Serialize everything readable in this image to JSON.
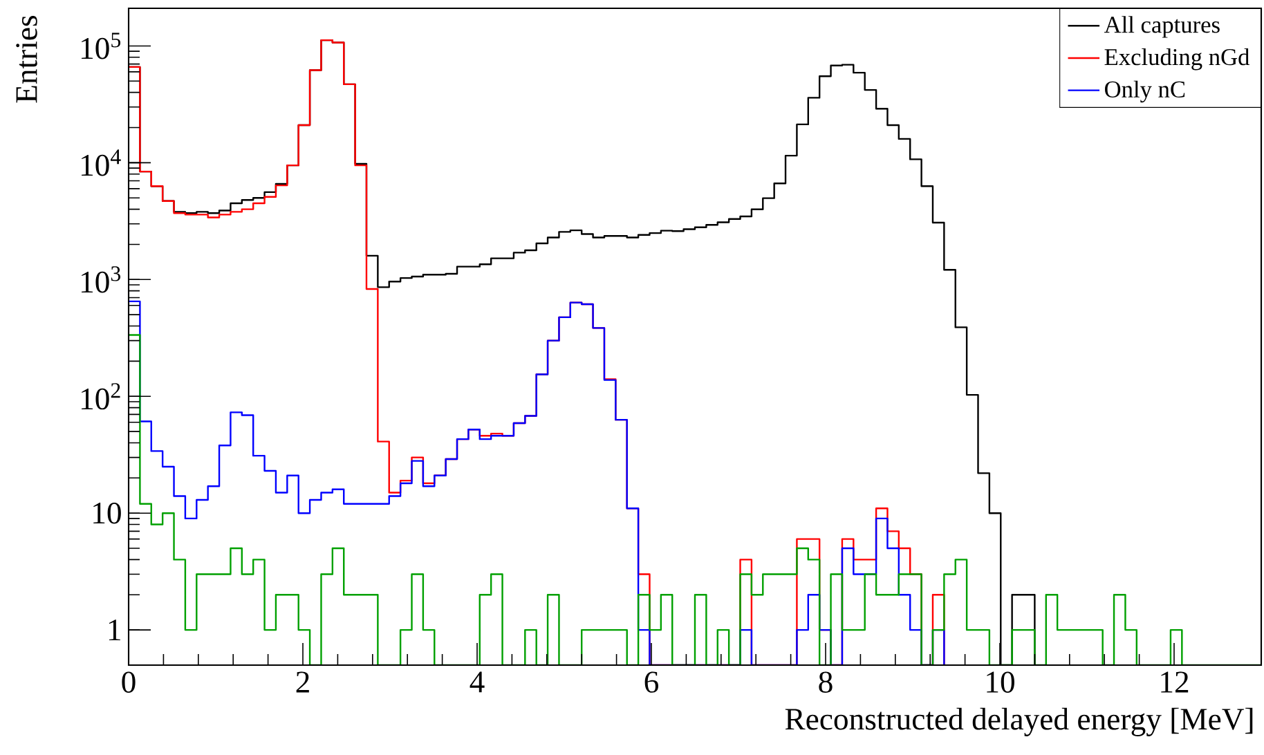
{
  "chart_data": {
    "type": "histogram",
    "xlabel": "Reconstructed delayed energy [MeV]",
    "ylabel": "Entries",
    "log": "y",
    "legend": "top right",
    "bins": [
      0,
      0.13,
      0.26,
      0.39,
      0.52,
      0.65,
      0.78,
      0.91,
      1.04,
      1.17,
      1.3,
      1.43,
      1.56,
      1.69,
      1.82,
      1.95,
      2.08,
      2.21,
      2.34,
      2.47,
      2.6,
      2.73,
      2.86,
      2.99,
      3.12,
      3.25,
      3.38,
      3.51,
      3.64,
      3.77,
      3.9,
      4.03,
      4.16,
      4.29,
      4.42,
      4.55,
      4.68,
      4.81,
      4.94,
      5.07,
      5.2,
      5.33,
      5.46,
      5.59,
      5.72,
      5.85,
      5.98,
      6.11,
      6.24,
      6.37,
      6.5,
      6.63,
      6.76,
      6.89,
      7.02,
      7.15,
      7.28,
      7.41,
      7.54,
      7.67,
      7.8,
      7.93,
      8.06,
      8.19,
      8.32,
      8.45,
      8.58,
      8.71,
      8.84,
      8.97,
      9.1,
      9.23,
      9.36,
      9.49,
      9.62,
      9.75,
      9.88,
      10.01,
      10.14,
      10.27,
      10.4,
      10.53,
      10.66,
      10.79,
      10.92,
      11.05,
      11.18,
      11.31,
      11.44,
      11.57,
      11.7,
      11.83,
      11.96,
      12.09,
      12.22,
      12.35,
      12.48,
      12.61,
      12.74,
      12.87,
      13
    ],
    "xlim": [
      0,
      13
    ],
    "xticks": [
      0,
      2,
      4,
      6,
      8,
      10,
      12
    ],
    "ylim": [
      0.5,
      210000
    ],
    "yticks": [
      1,
      10,
      {
        "value": 100,
        "label": "10$^{2}$"
      },
      {
        "value": 1000,
        "label": "10$^{3}$"
      },
      {
        "value": 10000,
        "label": "10$^{4}$"
      },
      {
        "value": 100000,
        "label": "10$^{5}$"
      }
    ],
    "series": [
      {
        "name": "All captures",
        "color": "#000000",
        "bins": [
          0,
          0.13,
          0.26,
          0.39,
          0.52,
          0.65,
          0.78,
          0.91,
          1.04,
          1.17,
          1.3,
          1.43,
          1.56,
          1.69,
          1.82,
          1.95,
          2.08,
          2.21,
          2.34,
          2.47,
          2.6,
          2.73,
          2.86,
          2.99,
          3.12,
          3.25,
          3.38,
          3.51,
          3.64,
          3.77,
          3.9,
          4.03,
          4.16,
          4.29,
          4.42,
          4.55,
          4.68,
          4.81,
          4.94,
          5.07,
          5.2,
          5.33,
          5.46,
          5.59,
          5.72,
          5.85,
          5.98,
          6.11,
          6.24,
          6.37,
          6.5,
          6.63,
          6.76,
          6.89,
          7.02,
          7.15,
          7.28,
          7.41,
          7.54,
          7.67,
          7.8,
          7.93,
          8.06,
          8.19,
          8.32,
          8.45,
          8.58,
          8.71,
          8.84,
          8.97,
          9.1,
          9.23,
          9.36,
          9.49,
          9.62,
          9.75,
          9.88,
          10.01,
          10.14,
          10.27,
          10.4
        ],
        "values": [
          66000,
          8400,
          6300,
          4700,
          3800,
          3700,
          3800,
          3700,
          3900,
          4500,
          4800,
          5000,
          5600,
          6600,
          9500,
          21000,
          62000,
          112000,
          107000,
          47000,
          9800,
          1600,
          860,
          960,
          1030,
          1060,
          1100,
          1100,
          1120,
          1290,
          1290,
          1350,
          1520,
          1520,
          1700,
          1780,
          2040,
          2290,
          2560,
          2640,
          2450,
          2290,
          2360,
          2360,
          2290,
          2410,
          2500,
          2620,
          2600,
          2700,
          2800,
          2940,
          3090,
          3300,
          3470,
          3990,
          4970,
          6660,
          11500,
          21300,
          36000,
          55000,
          68000,
          69000,
          59000,
          42000,
          29000,
          21000,
          16000,
          10700,
          6300,
          3070,
          1210,
          390,
          103,
          22,
          10,
          null,
          2,
          2
        ]
      },
      {
        "name": "Excluding nGd",
        "color": "#ff0000",
        "bins": [
          0,
          0.13,
          0.26,
          0.39,
          0.52,
          0.65,
          0.78,
          0.91,
          1.04,
          1.17,
          1.3,
          1.43,
          1.56,
          1.69,
          1.82,
          1.95,
          2.08,
          2.21,
          2.34,
          2.47,
          2.6,
          2.73,
          2.86,
          2.99,
          3.12,
          3.25,
          3.38,
          3.51,
          3.64,
          3.77,
          3.9,
          4.03,
          4.16,
          4.29,
          4.42,
          4.55,
          4.68,
          4.81,
          4.94,
          5.07,
          5.2,
          5.33,
          5.46,
          5.59,
          5.72,
          5.85,
          5.98,
          6.11,
          6.24,
          6.37,
          6.5,
          6.63,
          6.76,
          6.89,
          7.02,
          7.15,
          7.28,
          7.41,
          7.54,
          7.67,
          7.8,
          7.93,
          8.06,
          8.19,
          8.32,
          8.45,
          8.58,
          8.71,
          8.84,
          8.97,
          9.1,
          9.23,
          9.36
        ],
        "values": [
          66000,
          8400,
          6300,
          4700,
          3700,
          3600,
          3600,
          3400,
          3600,
          3800,
          4000,
          4500,
          5100,
          6400,
          9500,
          21000,
          62000,
          112000,
          107000,
          47000,
          9500,
          830,
          41,
          15,
          19,
          30,
          18,
          21,
          29,
          43,
          52,
          46,
          48,
          46,
          59,
          68,
          154,
          300,
          475,
          635,
          615,
          385,
          140,
          63,
          11,
          3,
          null,
          null,
          null,
          null,
          null,
          null,
          null,
          null,
          4,
          null,
          null,
          null,
          null,
          6,
          6,
          1,
          null,
          6,
          4,
          4,
          11,
          7,
          5,
          3,
          null,
          2
        ]
      },
      {
        "name": "Only nC",
        "color": "#0000ff",
        "bins": [
          0,
          0.13,
          0.26,
          0.39,
          0.52,
          0.65,
          0.78,
          0.91,
          1.04,
          1.17,
          1.3,
          1.43,
          1.56,
          1.69,
          1.82,
          1.95,
          2.08,
          2.21,
          2.34,
          2.47,
          2.6,
          2.73,
          2.86,
          2.99,
          3.12,
          3.25,
          3.38,
          3.51,
          3.64,
          3.77,
          3.9,
          4.03,
          4.16,
          4.29,
          4.42,
          4.55,
          4.68,
          4.81,
          4.94,
          5.07,
          5.2,
          5.33,
          5.46,
          5.59,
          5.72,
          5.85,
          5.98,
          6.11,
          6.24,
          6.37,
          6.5,
          6.63,
          6.76,
          6.89,
          7.02,
          7.15,
          7.28,
          7.41,
          7.54,
          7.67,
          7.8,
          7.93,
          8.06,
          8.19,
          8.32,
          8.45,
          8.58,
          8.71,
          8.84,
          8.97,
          9.1,
          9.23,
          9.36
        ],
        "values": [
          650,
          61,
          34,
          25,
          14,
          9,
          13,
          17,
          38,
          73,
          69,
          31,
          23,
          15,
          21,
          10,
          13,
          15,
          16,
          12,
          12,
          12,
          12,
          14,
          18,
          28,
          17,
          21,
          29,
          43,
          52,
          43,
          46,
          46,
          59,
          68,
          154,
          300,
          475,
          635,
          615,
          385,
          138,
          63,
          11,
          1,
          null,
          null,
          null,
          null,
          null,
          null,
          null,
          null,
          1,
          null,
          null,
          null,
          null,
          1,
          2,
          1,
          null,
          5,
          3,
          3,
          9,
          5,
          2,
          1,
          null,
          1
        ]
      },
      {
        "color": "#00a000",
        "values": [
          335,
          12,
          8,
          10,
          4,
          1,
          3,
          3,
          3,
          5,
          3,
          4,
          1,
          2,
          2,
          1,
          null,
          3,
          5,
          2,
          2,
          2,
          null,
          null,
          1,
          3,
          1,
          null,
          null,
          null,
          null,
          2,
          3,
          null,
          null,
          1,
          null,
          2,
          null,
          null,
          1,
          1,
          1,
          1,
          null,
          2,
          1,
          2,
          null,
          null,
          2,
          null,
          1,
          null,
          3,
          2,
          3,
          3,
          3,
          5,
          4,
          null,
          3,
          1,
          1,
          3,
          2,
          2,
          3,
          3,
          null,
          1,
          3,
          4,
          1,
          1,
          null,
          null,
          1,
          1,
          null,
          2,
          1,
          1,
          1,
          1,
          null,
          2,
          1,
          null,
          null,
          null,
          1,
          null,
          null,
          null,
          null,
          null,
          null,
          null
        ]
      }
    ]
  }
}
